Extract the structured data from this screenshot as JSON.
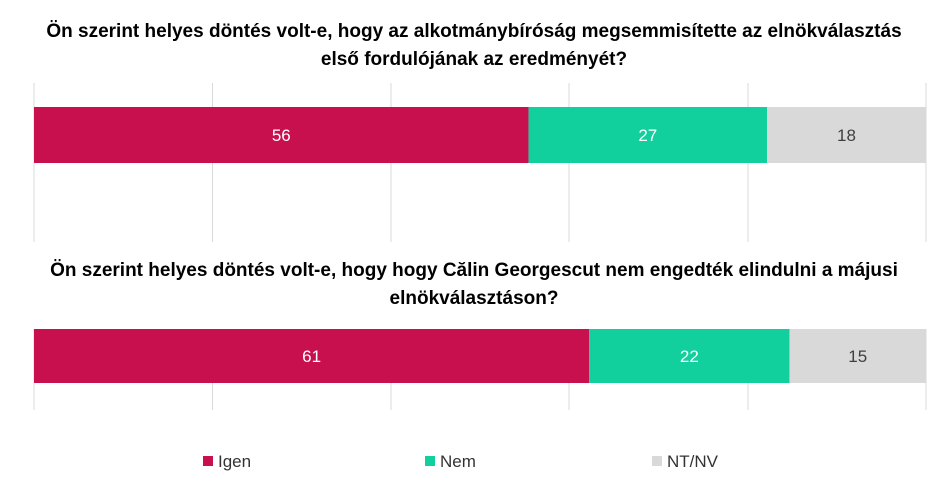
{
  "chart_data": [
    {
      "type": "bar",
      "orientation": "horizontal-stacked",
      "title": "Ön szerint helyes döntés volt-e, hogy az alkotmánybíróság megsemmisítette az elnökválasztás első fordulójának az eredményét?",
      "title_lines": [
        "Ön szerint helyes döntés volt-e, hogy az alkotmánybíróság megsemmisítette az elnökválasztás",
        "első fordulójának az eredményét?"
      ],
      "series": [
        {
          "name": "Igen",
          "values": [
            56
          ]
        },
        {
          "name": "Nem",
          "values": [
            27
          ]
        },
        {
          "name": "NT/NV",
          "values": [
            18
          ]
        }
      ],
      "grid": true
    },
    {
      "type": "bar",
      "orientation": "horizontal-stacked",
      "title": "Ön szerint helyes döntés volt-e, hogy hogy Călin Georgescut nem engedték elindulni a májusi elnökválasztáson?",
      "title_lines": [
        "Ön szerint helyes döntés volt-e, hogy hogy Călin Georgescut nem engedték elindulni a májusi",
        "elnökválasztáson?"
      ],
      "series": [
        {
          "name": "Igen",
          "values": [
            61
          ]
        },
        {
          "name": "Nem",
          "values": [
            22
          ]
        },
        {
          "name": "NT/NV",
          "values": [
            15
          ]
        }
      ],
      "grid": true
    }
  ],
  "legend": {
    "position": "bottom",
    "items": [
      {
        "label": "Igen",
        "color": "#C8104F"
      },
      {
        "label": "Nem",
        "color": "#12D09D"
      },
      {
        "label": "NT/NV",
        "color": "#D9D9D9"
      }
    ]
  },
  "colors": {
    "label_on_dark": "#FFFFFF",
    "label_on_light": "#404040",
    "gridline": "#D9D9D9"
  }
}
